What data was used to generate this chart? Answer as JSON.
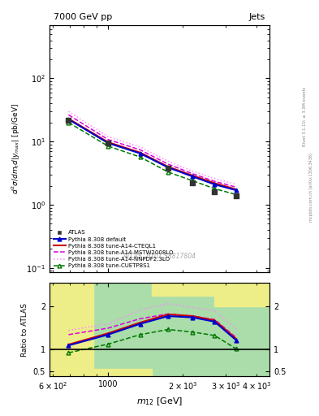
{
  "title_left": "7000 GeV pp",
  "title_right": "Jets",
  "xlabel": "m_{12} [GeV]",
  "watermark": "ATLAS_2010_S8817804",
  "x_data": [
    693,
    1000,
    1350,
    1750,
    2200,
    2700,
    3300
  ],
  "atlas_x": [
    693,
    1000,
    1750,
    2200,
    2700,
    3300
  ],
  "atlas_y": [
    22.0,
    9.5,
    3.8,
    2.2,
    1.6,
    1.4
  ],
  "pythia_default_y": [
    22.5,
    9.5,
    6.5,
    3.9,
    2.8,
    2.1,
    1.7
  ],
  "pythia_cteql1_y": [
    23.0,
    9.8,
    6.7,
    4.0,
    2.9,
    2.2,
    1.75
  ],
  "pythia_mstw_y": [
    26.5,
    10.8,
    7.4,
    4.4,
    3.1,
    2.35,
    1.9
  ],
  "pythia_nnpdf_y": [
    30.0,
    12.0,
    8.2,
    4.9,
    3.4,
    2.6,
    2.1
  ],
  "pythia_cuetp_y": [
    20.0,
    8.5,
    5.7,
    3.3,
    2.4,
    1.8,
    1.45
  ],
  "ratio_x": [
    693,
    1000,
    1350,
    1750,
    2200,
    2700,
    3300
  ],
  "ratio_default": [
    1.1,
    1.35,
    1.6,
    1.78,
    1.75,
    1.65,
    1.22
  ],
  "ratio_cteql1": [
    1.12,
    1.38,
    1.63,
    1.82,
    1.78,
    1.68,
    1.25
  ],
  "ratio_mstw": [
    1.35,
    1.5,
    1.72,
    1.83,
    1.78,
    1.7,
    1.28
  ],
  "ratio_nnpdf": [
    1.45,
    1.6,
    1.92,
    2.07,
    1.98,
    1.9,
    1.48
  ],
  "ratio_cuetp": [
    0.93,
    1.13,
    1.35,
    1.47,
    1.41,
    1.33,
    1.02
  ],
  "color_atlas": "#333333",
  "color_default": "#0000cc",
  "color_cteql1": "#cc0000",
  "color_mstw": "#dd00dd",
  "color_nnpdf": "#ff88ff",
  "color_cuetp": "#007700",
  "xlim_main": [
    580,
    4500
  ],
  "ylim_main": [
    0.085,
    700
  ],
  "xlim_ratio": [
    580,
    4500
  ],
  "ylim_ratio": [
    0.38,
    2.55
  ],
  "legend_labels": [
    "ATLAS",
    "Pythia 8.308 default",
    "Pythia 8.308 tune-A14-CTEQL1",
    "Pythia 8.308 tune-A14-MSTW2008LO",
    "Pythia 8.308 tune-A14-NNPDF2.3LO",
    "Pythia 8.308 tune-CUETP8S1"
  ]
}
